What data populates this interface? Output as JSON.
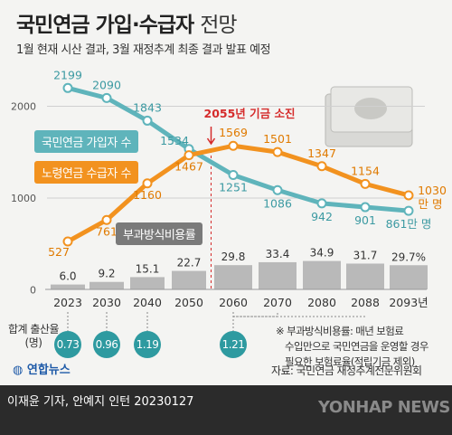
{
  "title_main": "국민연금 가입·수급자",
  "title_sub": "전망",
  "subtitle": "1월 현재 시산 결과, 3월 재정추계 최종 결과 발표 예정",
  "legend": {
    "subscribers": "국민연금 가입자 수",
    "recipients": "노령연금 수급자 수",
    "ratio": "부과방식비용률"
  },
  "annotation": "2055년 기금 소진",
  "unit_end_recipients": "만 명",
  "unit_end_subscribers": "만 명",
  "fertility_label": "합계 출산율 (명)",
  "footnote": [
    "※ 부과방식비용률: 매년 보험료",
    "수입만으로 국민연금을 운영할 경우",
    "필요한 보험료율(적립기금 제외)"
  ],
  "source": "자료: 국민연금 재정추계전문위원회",
  "logo": "연합뉴스",
  "credit": "이재윤 기자, 안예지 인턴  20230127",
  "watermark": "YONHAP NEWS",
  "colors": {
    "subscribers": "#5fb4bb",
    "recipients": "#f2921f",
    "bars": "#b9b9b9",
    "annotation": "#d52b2b",
    "bubble": "#2e9aa0"
  },
  "chart_data": {
    "type": "line+bar",
    "x": [
      "2023",
      "2030",
      "2040",
      "2050",
      "2060",
      "2070",
      "2080",
      "2088",
      "2093년"
    ],
    "series": [
      {
        "name": "국민연금 가입자 수",
        "values": [
          2199,
          2090,
          1843,
          1534,
          1251,
          1086,
          942,
          901,
          861
        ]
      },
      {
        "name": "노령연금 수급자 수",
        "values": [
          527,
          761,
          1160,
          1467,
          1569,
          1501,
          1347,
          1154,
          1030
        ]
      },
      {
        "name": "부과방식비용률",
        "values": [
          6.0,
          9.2,
          15.1,
          22.7,
          29.8,
          33.4,
          34.9,
          31.7,
          29.7
        ]
      }
    ],
    "ratio_labels": [
      "6.0",
      "9.2",
      "15.1",
      "22.7",
      "29.8",
      "33.4",
      "34.9",
      "31.7",
      "29.7%"
    ],
    "yticks": [
      0,
      1000,
      2000
    ],
    "ylim": [
      0,
      2400
    ],
    "fertility": [
      {
        "year": "2023",
        "value": "0.73"
      },
      {
        "year": "2030",
        "value": "0.96"
      },
      {
        "year": "2040",
        "value": "1.19"
      },
      {
        "year": "2060",
        "value": "1.21"
      }
    ]
  }
}
